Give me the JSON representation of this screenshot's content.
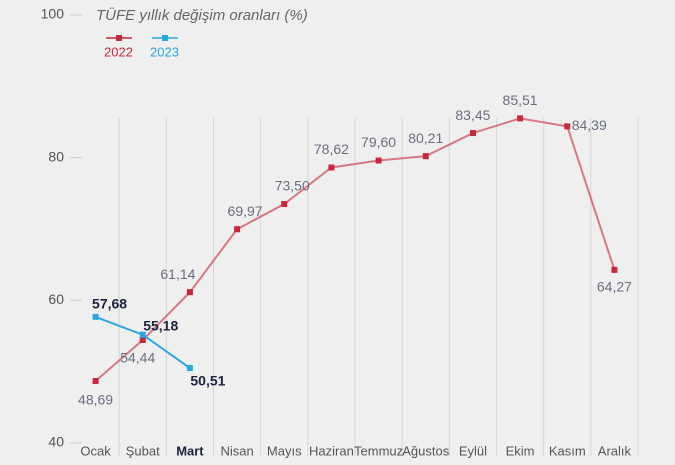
{
  "chart_data": {
    "type": "line",
    "title": "TÜFE yıllık değişim oranları (%)",
    "categories": [
      "Ocak",
      "Şubat",
      "Mart",
      "Nisan",
      "Mayıs",
      "Haziran",
      "Temmuz",
      "Ağustos",
      "Eylül",
      "Ekim",
      "Kasım",
      "Aralık"
    ],
    "series": [
      {
        "name": "2022",
        "color": "#c8283c",
        "values": [
          48.69,
          54.44,
          61.14,
          69.97,
          73.5,
          78.62,
          79.6,
          80.21,
          83.45,
          85.51,
          84.39,
          64.27
        ],
        "value_labels": [
          "48,69",
          "54,44",
          "61,14",
          "69,97",
          "73,50",
          "78,62",
          "79,60",
          "80,21",
          "83,45",
          "85,51",
          "84,39",
          "64,27"
        ]
      },
      {
        "name": "2023",
        "color": "#29a8e0",
        "values": [
          57.68,
          55.18,
          50.51,
          null,
          null,
          null,
          null,
          null,
          null,
          null,
          null,
          null
        ],
        "value_labels": [
          "57,68",
          "55,18",
          "50,51",
          null,
          null,
          null,
          null,
          null,
          null,
          null,
          null,
          null
        ]
      }
    ],
    "ylim": [
      40,
      100
    ],
    "yticks": [
      40,
      60,
      80,
      100
    ]
  }
}
